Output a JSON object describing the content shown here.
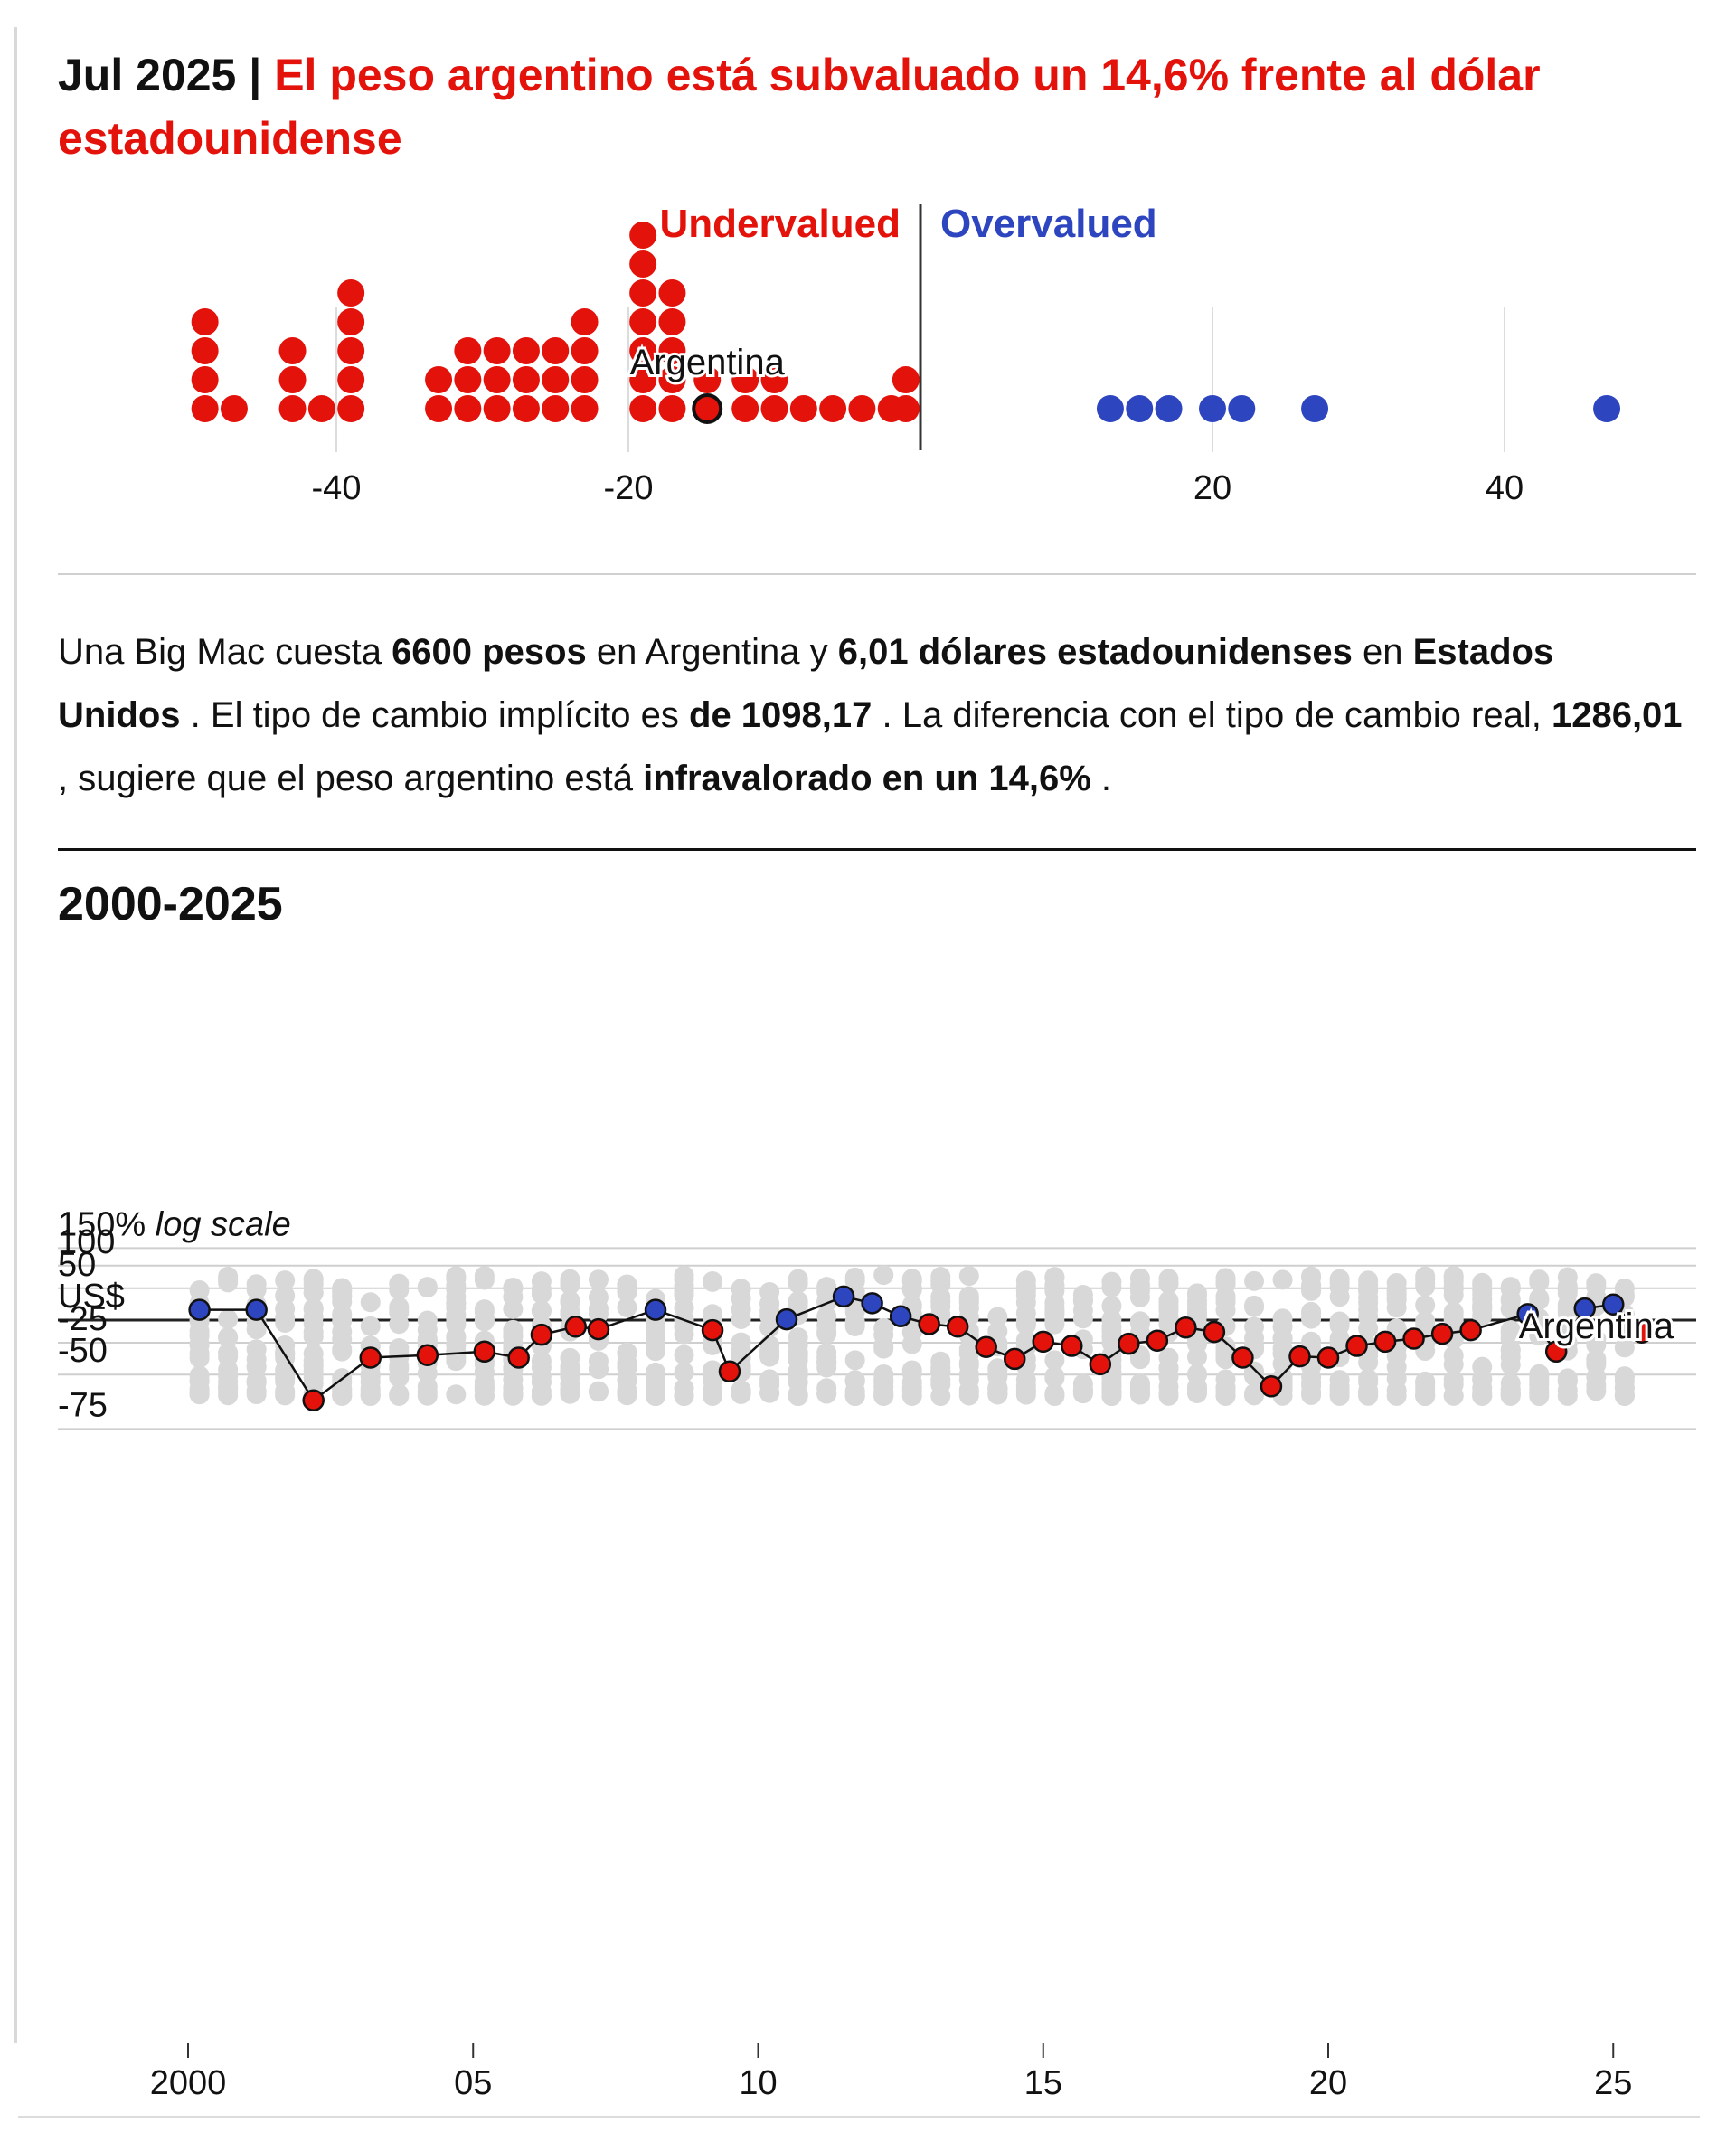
{
  "header": {
    "date": "Jul 2025",
    "separator": "|",
    "headline": "El peso argentino está subvaluado un 14,6% frente al dólar estadounidense"
  },
  "colors": {
    "red": "#e3120b",
    "blue": "#2e45c0",
    "grey": "#d8d8d8",
    "text": "#111111"
  },
  "description": {
    "p1": "Una Big Mac cuesta ",
    "b1": "6600 pesos",
    "p2": " en Argentina y ",
    "b2": "6,01 dólares estadounidenses",
    "p3": " en ",
    "b3": "Estados Unidos",
    "p4": " . El tipo de cambio implícito es ",
    "b4": "de 1098,17",
    "p5": " . La diferencia con el tipo de cambio real, ",
    "b5": "1286,01",
    "p6": " , sugiere que el peso argentino está ",
    "b6": "infravalorado en un 14,6%",
    "p7": " ."
  },
  "chart_data": [
    {
      "type": "scatter",
      "title": "",
      "labels": {
        "undervalued": "Undervalued",
        "overvalued": "Overvalued",
        "highlight": "Argentina"
      },
      "xlim": [
        -52,
        52
      ],
      "xticks": [
        -40,
        -20,
        20,
        40
      ],
      "xtick_labels": [
        "-40",
        "-20",
        "20",
        "40"
      ],
      "highlight_value": -14.6,
      "red_values": [
        -49,
        -49,
        -49,
        -49,
        -47,
        -43,
        -43,
        -43,
        -41,
        -39,
        -39,
        -39,
        -39,
        -39,
        -33,
        -33,
        -31,
        -31,
        -31,
        -29,
        -29,
        -29,
        -27,
        -27,
        -27,
        -25,
        -25,
        -25,
        -23,
        -23,
        -23,
        -23,
        -19,
        -19,
        -19,
        -19,
        -19,
        -19,
        -19,
        -17,
        -17,
        -17,
        -17,
        -17,
        -14.6,
        -14.6,
        -12,
        -12,
        -10,
        -10,
        -8,
        -6,
        -4,
        -2,
        -1,
        -1
      ],
      "blue_values": [
        13,
        15,
        17,
        20,
        22,
        27,
        47
      ]
    },
    {
      "type": "line",
      "title": "2000-2025",
      "series_name": "Argentina",
      "yscale": "log",
      "ylim": [
        -90,
        150
      ],
      "yticks": [
        150,
        100,
        50,
        0,
        -25,
        -50,
        -75
      ],
      "ytick_labels": [
        "150% log scale",
        "100",
        "50",
        "US$",
        "-25",
        "-50",
        "-75"
      ],
      "xticks": [
        2000,
        2005,
        2010,
        2015,
        2020,
        2025
      ],
      "xtick_labels": [
        "2000",
        "05",
        "10",
        "15",
        "20",
        "25"
      ],
      "x": [
        2000.2,
        2001.2,
        2002.2,
        2003.2,
        2004.2,
        2005.2,
        2005.8,
        2006.2,
        2006.8,
        2007.2,
        2008.2,
        2009.2,
        2009.5,
        2010.5,
        2011.5,
        2012.0,
        2012.5,
        2013.0,
        2013.5,
        2014.0,
        2014.5,
        2015.0,
        2015.5,
        2016.0,
        2016.5,
        2017.0,
        2017.5,
        2018.0,
        2018.5,
        2019.0,
        2019.5,
        2020.0,
        2020.5,
        2021.0,
        2021.5,
        2022.0,
        2022.5,
        2023.5,
        2024.0,
        2024.5,
        2025.0,
        2025.5
      ],
      "values": [
        14,
        14,
        -64,
        -38,
        -36,
        -33,
        -38,
        -17,
        -8,
        -11,
        14,
        -12,
        -48,
        1,
        35,
        24,
        5,
        -5,
        -8,
        -29,
        -39,
        -24,
        -28,
        -43,
        -26,
        -23,
        -9,
        -14,
        -38,
        -57,
        -37,
        -38,
        -28,
        -24,
        -21,
        -16,
        -12,
        8,
        -33,
        16,
        22,
        -14.6
      ],
      "annotation": "Argentina"
    }
  ]
}
